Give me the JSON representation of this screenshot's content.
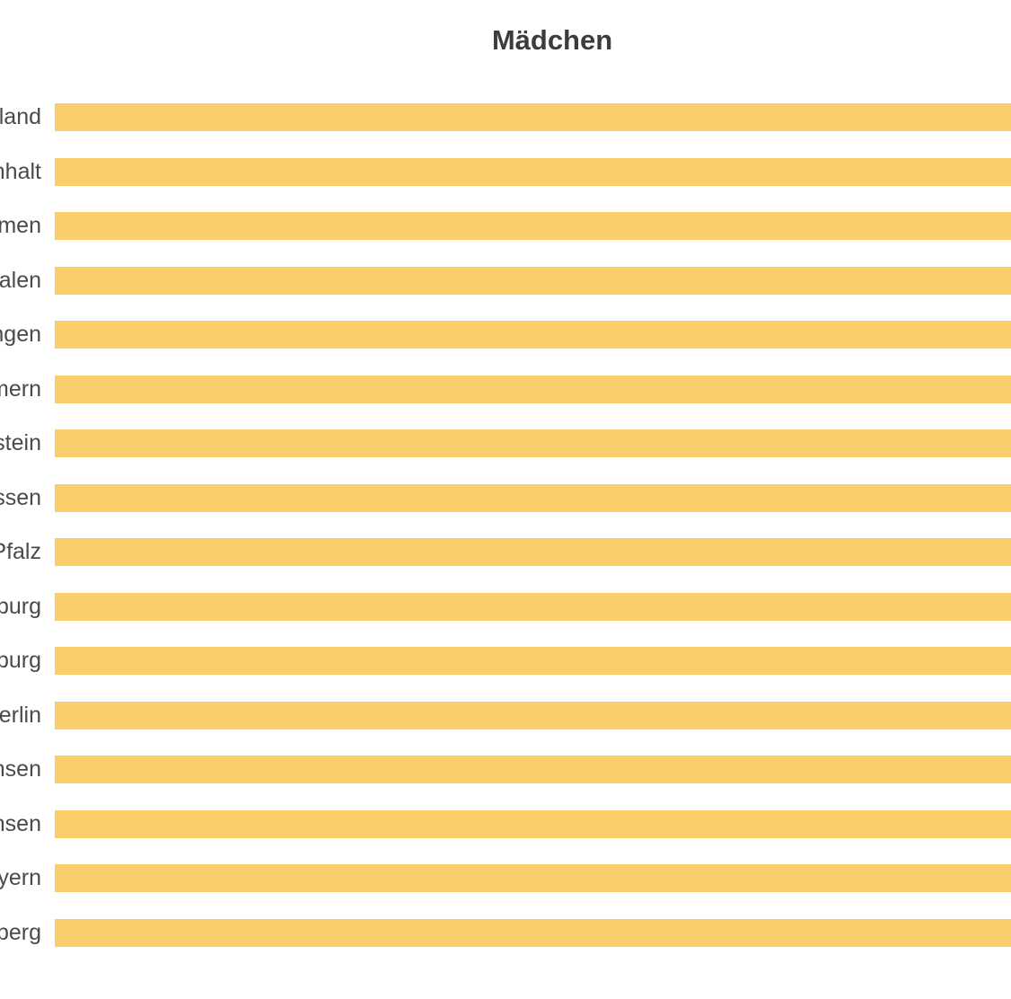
{
  "chart_data": {
    "type": "bar",
    "orientation": "horizontal",
    "title": "Mädchen",
    "categories": [
      "Saarland",
      "Sachsen-Anhalt",
      "Bremen",
      "Nordrhein-Westfalen",
      "Thüringen",
      "Mecklenburg-Vorpommern",
      "Schleswig-Holstein",
      "Hessen",
      "Rheinland-Pfalz",
      "Brandenburg",
      "Hamburg",
      "Berlin",
      "Niedersachsen",
      "Sachsen",
      "Bayern",
      "Baden-Württemberg"
    ],
    "visible_label_fragments": [
      "and",
      "halt",
      "nen",
      "len",
      "gen",
      "ern",
      "tein",
      "sen",
      "falz",
      "urg",
      "urg",
      "rlin",
      "sen",
      "sen",
      "ern",
      "erg"
    ],
    "values": null,
    "values_note": "Numeric values are not visible: every bar extends beyond the right edge of the cropped screenshot, so all 16 bars render at full visible width.",
    "xlabel": "",
    "ylabel": "",
    "legend": "none",
    "grid": false,
    "colors": {
      "bar": "#f9cd69",
      "title_text": "#3c3c3c",
      "label_text": "#4a4a4a",
      "background": "#ffffff"
    },
    "note": "Right-hand panel of a wider two-panel chart; category labels are clipped at the left crop edge so only their endings are visible."
  }
}
